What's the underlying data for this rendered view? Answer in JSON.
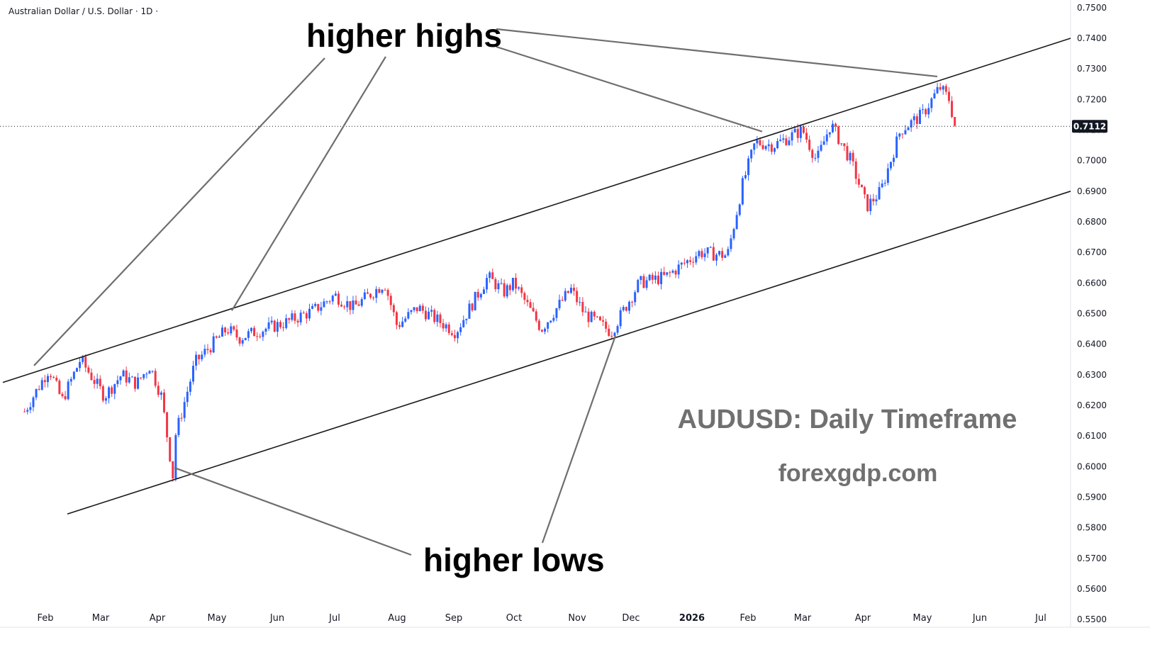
{
  "header": {
    "symbol_title": "Australian Dollar / U.S. Dollar · 1D ·"
  },
  "last_price": {
    "label": "0.7112",
    "value": 0.7112
  },
  "annotations": {
    "higher_highs": "higher highs",
    "higher_lows": "higher lows",
    "watermark_title": "AUDUSD: Daily Timeframe",
    "watermark_site": "forexgdp.com"
  },
  "colors": {
    "up": "#2962ff",
    "down": "#f23645",
    "channel": "#1a1a1a",
    "pointer": "#6e6e6e",
    "axis_text": "#131722"
  },
  "chart_data": {
    "type": "candlestick",
    "title": "Australian Dollar / U.S. Dollar · 1D ·",
    "y_axis": {
      "ticks": [
        "0.7500",
        "0.7400",
        "0.7300",
        "0.7200",
        "0.7100",
        "0.7000",
        "0.6900",
        "0.6800",
        "0.6700",
        "0.6600",
        "0.6500",
        "0.6400",
        "0.6300",
        "0.6200",
        "0.6100",
        "0.6000",
        "0.5900",
        "0.5800",
        "0.5700",
        "0.5600",
        "0.5500"
      ],
      "range": [
        0.5475,
        0.7525
      ],
      "side": "right"
    },
    "x_axis": {
      "ticks": [
        {
          "label": "Feb",
          "bold": false,
          "idx": 0
        },
        {
          "label": "Mar",
          "bold": false,
          "idx": 1
        },
        {
          "label": "Apr",
          "bold": false,
          "idx": 2
        },
        {
          "label": "May",
          "bold": false,
          "idx": 3
        },
        {
          "label": "Jun",
          "bold": false,
          "idx": 4
        },
        {
          "label": "Jul",
          "bold": false,
          "idx": 5
        },
        {
          "label": "Aug",
          "bold": false,
          "idx": 6
        },
        {
          "label": "Sep",
          "bold": false,
          "idx": 7
        },
        {
          "label": "Oct",
          "bold": false,
          "idx": 8
        },
        {
          "label": "Nov",
          "bold": false,
          "idx": 9
        },
        {
          "label": "Dec",
          "bold": false,
          "idx": 10
        },
        {
          "label": "2026",
          "bold": true,
          "idx": 11
        },
        {
          "label": "Feb",
          "bold": false,
          "idx": 12
        },
        {
          "label": "Mar",
          "bold": false,
          "idx": 13
        },
        {
          "label": "Apr",
          "bold": false,
          "idx": 14
        },
        {
          "label": "May",
          "bold": false,
          "idx": 15
        },
        {
          "label": "Jun",
          "bold": false,
          "idx": 16
        },
        {
          "label": "Jul",
          "bold": false,
          "idx": 17
        }
      ]
    },
    "price_anchors": [
      [
        "Jan 20",
        0.618
      ],
      [
        "Feb 3",
        0.632
      ],
      [
        "Feb 10",
        0.6215
      ],
      [
        "Feb 20",
        0.635
      ],
      [
        "Mar 3",
        0.623
      ],
      [
        "Mar 12",
        0.63
      ],
      [
        "Mar 20",
        0.627
      ],
      [
        "Mar 27",
        0.633
      ],
      [
        "Apr 3",
        0.623
      ],
      [
        "Apr 9",
        0.596
      ],
      [
        "Apr 10",
        0.61
      ],
      [
        "Apr 20",
        0.634
      ],
      [
        "May 6",
        0.645
      ],
      [
        "May 12",
        0.642
      ],
      [
        "May 20",
        0.644
      ],
      [
        "Jun 5",
        0.647
      ],
      [
        "Jun 20",
        0.651
      ],
      [
        "Jul 1",
        0.656
      ],
      [
        "Jul 10",
        0.652
      ],
      [
        "Jul 25",
        0.66
      ],
      [
        "Aug 1",
        0.646
      ],
      [
        "Aug 12",
        0.652
      ],
      [
        "Aug 22",
        0.648
      ],
      [
        "Sep 2",
        0.644
      ],
      [
        "Sep 18",
        0.662
      ],
      [
        "Sep 26",
        0.657
      ],
      [
        "Oct 1",
        0.66
      ],
      [
        "Oct 14",
        0.645
      ],
      [
        "Oct 28",
        0.658
      ],
      [
        "Nov 5",
        0.65
      ],
      [
        "Nov 20",
        0.644
      ],
      [
        "Dec 5",
        0.66
      ],
      [
        "Dec 18",
        0.662
      ],
      [
        "Jan 5",
        0.67
      ],
      [
        "Jan 20",
        0.669
      ],
      [
        "Jan 28",
        0.692
      ],
      [
        "Feb 5",
        0.706
      ],
      [
        "Feb 15",
        0.705
      ],
      [
        "Mar 1",
        0.71
      ],
      [
        "Mar 8",
        0.7
      ],
      [
        "Mar 15",
        0.712
      ],
      [
        "Mar 25",
        0.7
      ],
      [
        "Apr 3",
        0.685
      ],
      [
        "Apr 10",
        0.69
      ],
      [
        "Apr 20",
        0.71
      ],
      [
        "May 1",
        0.715
      ],
      [
        "May 10",
        0.724
      ],
      [
        "May 15",
        0.72
      ],
      [
        "May 18",
        0.7112
      ]
    ],
    "channel_upper": [
      [
        "Jan 20",
        0.6275
      ],
      [
        "Jul 15 (2026)",
        0.74
      ]
    ],
    "channel_lower": [
      [
        "Feb 10",
        0.5845
      ],
      [
        "Jul 15 (2026)",
        0.69
      ]
    ],
    "higher_highs_points": [
      [
        "Feb 3",
        0.633
      ],
      [
        "May 6",
        0.651
      ],
      [
        "Feb 10 (2026)",
        0.7095
      ],
      [
        "May 10 (2026)",
        0.7275
      ]
    ],
    "higher_lows_points": [
      [
        "Apr 9",
        0.5955
      ],
      [
        "Nov 20",
        0.642
      ]
    ],
    "grid": false
  }
}
